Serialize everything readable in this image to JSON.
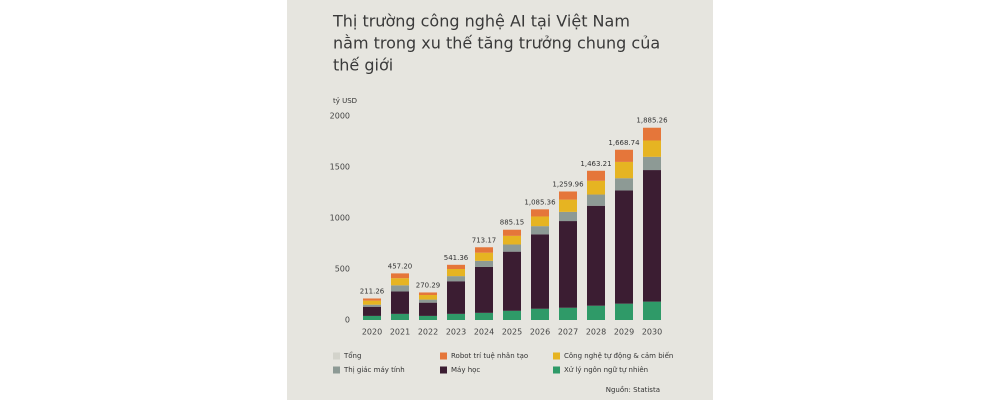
{
  "chart_data": {
    "type": "stacked_bar",
    "title_lines": [
      "Thị trường công nghệ AI tại Việt Nam",
      "nằm trong xu thế tăng trưởng chung của",
      "thế giới"
    ],
    "y_unit": "tỷ USD",
    "categories": [
      "2020",
      "2021",
      "2022",
      "2023",
      "2024",
      "2025",
      "2026",
      "2027",
      "2028",
      "2029",
      "2030"
    ],
    "series": [
      {
        "name": "Xử lý ngôn ngữ tự nhiên",
        "color": "#2f9a68",
        "values": [
          40,
          60,
          40,
          60,
          70,
          90,
          110,
          120,
          140,
          160,
          180
        ]
      },
      {
        "name": "Máy học",
        "color": "#3b1d32",
        "values": [
          90,
          220,
          130,
          320,
          450,
          580,
          730,
          850,
          980,
          1110,
          1290
        ]
      },
      {
        "name": "Thị giác máy tính",
        "color": "#8d9a95",
        "values": [
          20,
          60,
          30,
          50,
          60,
          70,
          80,
          90,
          110,
          120,
          130
        ]
      },
      {
        "name": "Công nghệ tự động & cảm biến",
        "color": "#e6b422",
        "values": [
          40,
          70,
          45,
          70,
          80,
          85,
          95,
          120,
          135,
          160,
          160
        ]
      },
      {
        "name": "Robot trí tuệ nhân tạo",
        "color": "#e5763a",
        "values": [
          21,
          47,
          25,
          41,
          53,
          60,
          70,
          80,
          98,
          119,
          125
        ]
      }
    ],
    "total": {
      "name": "Tổng",
      "color": "#d3d3cb",
      "values": [
        211.26,
        457.2,
        270.29,
        541.36,
        713.17,
        885.15,
        1085.36,
        1259.96,
        1463.21,
        1668.74,
        1885.26
      ],
      "value_labels": [
        "211.26",
        "457.20",
        "270.29",
        "541.36",
        "713.17",
        "885.15",
        "1,085.36",
        "1,259.96",
        "1,463.21",
        "1,668.74",
        "1,885.26"
      ]
    },
    "legend_order": [
      5,
      4,
      3,
      2,
      1,
      0
    ],
    "ylim": [
      0,
      2000
    ],
    "yticks": [
      0,
      500,
      1000,
      1500,
      2000
    ],
    "source": "Nguồn: Statista"
  }
}
